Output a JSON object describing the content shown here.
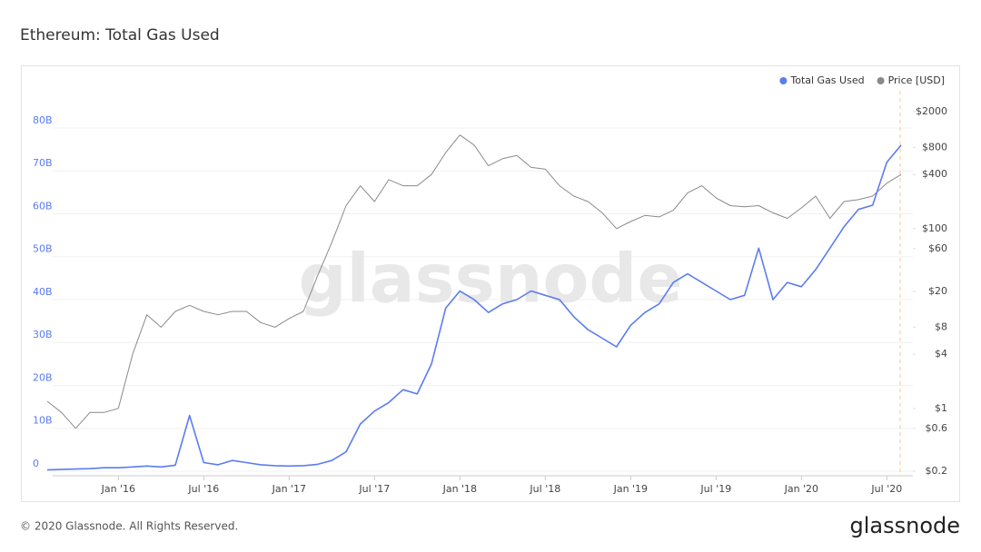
{
  "header": {
    "title": "Ethereum: Total Gas Used"
  },
  "chart_data": {
    "type": "line",
    "legend": "top-right",
    "grid": true,
    "watermark": "glassnode",
    "x": [
      "2015-08",
      "2015-09",
      "2015-10",
      "2015-11",
      "2015-12",
      "2016-01",
      "2016-02",
      "2016-03",
      "2016-04",
      "2016-05",
      "2016-06",
      "2016-07",
      "2016-08",
      "2016-09",
      "2016-10",
      "2016-11",
      "2016-12",
      "2017-01",
      "2017-02",
      "2017-03",
      "2017-04",
      "2017-05",
      "2017-06",
      "2017-07",
      "2017-08",
      "2017-09",
      "2017-10",
      "2017-11",
      "2017-12",
      "2018-01",
      "2018-02",
      "2018-03",
      "2018-04",
      "2018-05",
      "2018-06",
      "2018-07",
      "2018-08",
      "2018-09",
      "2018-10",
      "2018-11",
      "2018-12",
      "2019-01",
      "2019-02",
      "2019-03",
      "2019-04",
      "2019-05",
      "2019-06",
      "2019-07",
      "2019-08",
      "2019-09",
      "2019-10",
      "2019-11",
      "2019-12",
      "2020-01",
      "2020-02",
      "2020-03",
      "2020-04",
      "2020-05",
      "2020-06",
      "2020-07",
      "2020-08"
    ],
    "xlim": [
      "2015-08",
      "2020-08"
    ],
    "xticks": [
      {
        "value": "2016-01",
        "label": "Jan '16"
      },
      {
        "value": "2016-07",
        "label": "Jul '16"
      },
      {
        "value": "2017-01",
        "label": "Jan '17"
      },
      {
        "value": "2017-07",
        "label": "Jul '17"
      },
      {
        "value": "2018-01",
        "label": "Jan '18"
      },
      {
        "value": "2018-07",
        "label": "Jul '18"
      },
      {
        "value": "2019-01",
        "label": "Jan '19"
      },
      {
        "value": "2019-07",
        "label": "Jul '19"
      },
      {
        "value": "2020-01",
        "label": "Jan '20"
      },
      {
        "value": "2020-07",
        "label": "Jul '20"
      }
    ],
    "ylim": [
      0,
      83.8
    ],
    "yticks": [
      0,
      {
        "value": 10,
        "label": "10B"
      },
      {
        "value": 20,
        "label": "20B"
      },
      {
        "value": 30,
        "label": "30B"
      },
      {
        "value": 40,
        "label": "40B"
      },
      {
        "value": 50,
        "label": "50B"
      },
      {
        "value": 60,
        "label": "60B"
      },
      {
        "value": 70,
        "label": "70B"
      },
      {
        "value": 80,
        "label": "80B"
      }
    ],
    "y2lim": [
      0.2,
      2000
    ],
    "y2scale": "log",
    "y2ticks": [
      {
        "value": 0.2,
        "label": "$0.2"
      },
      {
        "value": 0.6,
        "label": "$0.6"
      },
      {
        "value": 1,
        "label": "$1"
      },
      {
        "value": 4,
        "label": "$4"
      },
      {
        "value": 8,
        "label": "$8"
      },
      {
        "value": 20,
        "label": "$20"
      },
      {
        "value": 60,
        "label": "$60"
      },
      {
        "value": 100,
        "label": "$100"
      },
      {
        "value": 400,
        "label": "$400"
      },
      {
        "value": 800,
        "label": "$800"
      },
      {
        "value": 2000,
        "label": "$2000"
      }
    ],
    "series": [
      {
        "name": "Total Gas Used",
        "color": "#5b7cf0",
        "axis": "y",
        "values": [
          0.3,
          0.4,
          0.5,
          0.6,
          0.8,
          0.8,
          1.0,
          1.2,
          1.0,
          1.4,
          13,
          2.0,
          1.5,
          2.5,
          2.0,
          1.5,
          1.3,
          1.2,
          1.3,
          1.6,
          2.5,
          4.5,
          11,
          14,
          16,
          19,
          18,
          25,
          38,
          42,
          40,
          37,
          39,
          40,
          42,
          41,
          40,
          36,
          33,
          31,
          29,
          34,
          37,
          39,
          44,
          46,
          44,
          42,
          40,
          41,
          52,
          40,
          44,
          43,
          47,
          52,
          57,
          61,
          62,
          72,
          76
        ]
      },
      {
        "name": "Price [USD]",
        "color": "#8a8a8a",
        "axis": "y2",
        "values": [
          1.2,
          0.9,
          0.6,
          0.9,
          0.9,
          1,
          4,
          11,
          8,
          12,
          14,
          12,
          11,
          12,
          12,
          9,
          8,
          10,
          12,
          30,
          70,
          180,
          300,
          200,
          350,
          300,
          300,
          400,
          700,
          1100,
          850,
          500,
          600,
          650,
          480,
          460,
          300,
          230,
          200,
          150,
          100,
          120,
          140,
          135,
          160,
          250,
          300,
          220,
          180,
          175,
          180,
          150,
          130,
          170,
          230,
          130,
          200,
          210,
          230,
          320,
          400
        ]
      }
    ]
  },
  "footer": {
    "copyright": "© 2020 Glassnode. All Rights Reserved.",
    "brand": "glassnode"
  }
}
